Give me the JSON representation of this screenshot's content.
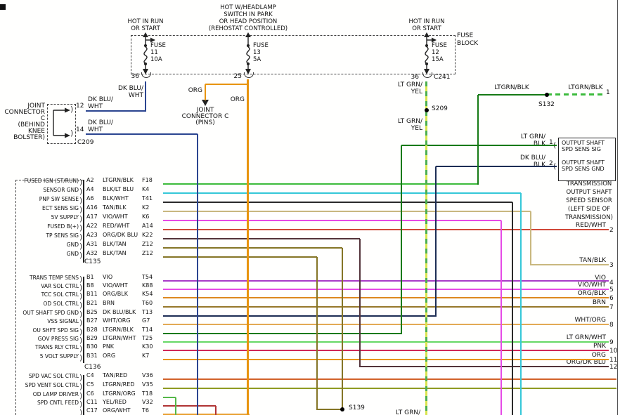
{
  "fuse_block": {
    "label": [
      "FUSE",
      "BLOCK"
    ],
    "fuses": [
      {
        "feed": [
          "HOT IN RUN",
          "OR START"
        ],
        "name": "FUSE",
        "number": "11",
        "rating": "10A",
        "pin": "36"
      },
      {
        "feed": [
          "HOT W/HEADLAMP",
          "SWITCH IN PARK",
          "OR HEAD POSITION",
          "(REHOSTAT CONTROLLED)"
        ],
        "name": "FUSE",
        "number": "13",
        "rating": "5A",
        "pin": "25"
      },
      {
        "feed": [
          "HOT IN RUN",
          "OR START"
        ],
        "name": "FUSE",
        "number": "12",
        "rating": "15A",
        "pin": "36",
        "connector": "C241"
      }
    ]
  },
  "wire_colors": {
    "dk_blu_wht": "#2b4590",
    "org": "#e8940f",
    "lt_grn_yel_base": "#d9e44f",
    "lt_grn_yel_dash": "#4caf50",
    "lt_grn_blk_dark": "#157a15",
    "lt_grn_blk_bright": "#3dbb3d",
    "dk_blu_blk": "#1d2d55"
  },
  "joint_connector_c": {
    "label": [
      "JOINT",
      "CONNECTOR",
      "C",
      "(BEHIND",
      "KNEE",
      "BOLSTER)"
    ],
    "pin_top": "12",
    "pin_bottom": "14",
    "id": "C209",
    "wire_label": [
      "DK BLU/",
      "WHT"
    ]
  },
  "joint_connector_c_pins": {
    "label": [
      "JOINT",
      "CONNECTOR C",
      "(PINS)"
    ],
    "wire_label": "ORG"
  },
  "splices": {
    "s132": "S132",
    "s209": "S209",
    "s139": "S139"
  },
  "lt_grn_yel_label": [
    "LT GRN/",
    "YEL"
  ],
  "top_right": {
    "wire_left": "LTGRN/BLK",
    "wire_right": "LTGRN/BLK",
    "pin": "1"
  },
  "sensor_box": {
    "rows": [
      {
        "wire_label": [
          "LT GRN/",
          "BLK"
        ],
        "pin": "1",
        "name": [
          "OUTPUT SHAFT",
          "SPD SENS SIG"
        ]
      },
      {
        "wire_label": [
          "DK BLU/",
          "BLK"
        ],
        "pin": "2",
        "name": [
          "OUTPUT SHAFT",
          "SPD SENS GND"
        ]
      }
    ],
    "caption": [
      "TRANSMISSION",
      "OUTPUT SHAFT",
      "SPEED SENSOR",
      "(LEFT SIDE OF",
      "TRANSMISSION)"
    ]
  },
  "connectors": [
    {
      "id": "C135",
      "rows": [
        {
          "label": "FUSED IGN (ST/RUN)",
          "pin": "A2",
          "wire": "LTGRN/BLK",
          "circuit": "F18",
          "color": "#3dbb3d"
        },
        {
          "label": "SENSOR GND",
          "pin": "A4",
          "wire": "BLK/LT BLU",
          "circuit": "K4",
          "color": "#35c8d8"
        },
        {
          "label": "PNP SW SENSE",
          "pin": "A6",
          "wire": "BLK/WHT",
          "circuit": "T41",
          "color": "#2a2a2a"
        },
        {
          "label": "ECT SENS SIG",
          "pin": "A16",
          "wire": "TAN/BLK",
          "circuit": "K2",
          "color": "#c9b87f"
        },
        {
          "label": "5V SUPPLY",
          "pin": "A17",
          "wire": "VIO/WHT",
          "circuit": "K6",
          "color": "#e64ae6"
        },
        {
          "label": "FUSED B(+)",
          "pin": "A22",
          "wire": "RED/WHT",
          "circuit": "A14",
          "color": "#d04838"
        },
        {
          "label": "TP SENS SIG",
          "pin": "A23",
          "wire": "ORG/DK BLU",
          "circuit": "K22",
          "color": "#53343a"
        },
        {
          "label": "GND",
          "pin": "A31",
          "wire": "BLK/TAN",
          "circuit": "Z12",
          "color": "#857526"
        },
        {
          "label": "GND",
          "pin": "A32",
          "wire": "BLK/TAN",
          "circuit": "Z12",
          "color": "#857526"
        }
      ]
    },
    {
      "id": "C136",
      "rows": [
        {
          "label": "TRANS TEMP SENS",
          "pin": "B1",
          "wire": "VIO",
          "circuit": "T54",
          "color": "#a83cc8"
        },
        {
          "label": "VAR SOL CTRL",
          "pin": "B8",
          "wire": "VIO/WHT",
          "circuit": "K88",
          "color": "#e64ae6"
        },
        {
          "label": "TCC SOL CTRL",
          "pin": "B11",
          "wire": "ORG/BLK",
          "circuit": "K54",
          "color": "#dd8820"
        },
        {
          "label": "OD SOL CTRL",
          "pin": "B21",
          "wire": "BRN",
          "circuit": "T60",
          "color": "#96782a"
        },
        {
          "label": "OUT SHAFT SPD GND",
          "pin": "B25",
          "wire": "DK BLU/BLK",
          "circuit": "T13",
          "color": "#1d2d55"
        },
        {
          "label": "VSS SIGNAL",
          "pin": "B27",
          "wire": "WHT/ORG",
          "circuit": "G7",
          "color": "#e2aa55"
        },
        {
          "label": "OU SHFT SPD SIG",
          "pin": "B28",
          "wire": "LTGRN/BLK",
          "circuit": "T14",
          "color": "#157a15"
        },
        {
          "label": "GOV PRESS SIG",
          "pin": "B29",
          "wire": "LTGRN/WHT",
          "circuit": "T25",
          "color": "#66d866"
        },
        {
          "label": "TRANS RLY CTRL",
          "pin": "B30",
          "wire": "PNK",
          "circuit": "K30",
          "color": "#d02858"
        },
        {
          "label": "5 VOLT SUPPLY",
          "pin": "B31",
          "wire": "ORG",
          "circuit": "K7",
          "color": "#e8940f"
        }
      ]
    },
    {
      "id": "",
      "rows": [
        {
          "label": "SPD VAC SOL CTRL",
          "pin": "C4",
          "wire": "TAN/RED",
          "circuit": "V36",
          "color": "#d2622a"
        },
        {
          "label": "SPD VENT SOL CTRL",
          "pin": "C5",
          "wire": "LTGRN/RED",
          "circuit": "V35",
          "color": "#8f9a22"
        },
        {
          "label": "OD LAMP DRIVER",
          "pin": "C6",
          "wire": "LTGRN/ORG",
          "circuit": "T18",
          "color": "#55b848"
        },
        {
          "label": "SPD CNTL FEED",
          "pin": "C11",
          "wire": "YEL/RED",
          "circuit": "V32",
          "color": "#b03333"
        },
        {
          "label": "",
          "pin": "C17",
          "wire": "ORG/WHT",
          "circuit": "T6",
          "color": "#e8a030"
        }
      ]
    }
  ],
  "right_pins": [
    {
      "wire": "RED/WHT",
      "pin": "2"
    },
    {
      "wire": "TAN/BLK",
      "pin": "3"
    },
    {
      "wire": "VIO",
      "pin": "4"
    },
    {
      "wire": "VIO/WHT",
      "pin": "5"
    },
    {
      "wire": "ORG/BLK",
      "pin": "6"
    },
    {
      "wire": "BRN",
      "pin": "7"
    },
    {
      "wire": "WHT/ORG",
      "pin": "8"
    },
    {
      "wire": "LT GRN/WHT",
      "pin": "9"
    },
    {
      "wire": "PNK",
      "pin": "10"
    },
    {
      "wire": "ORG",
      "pin": "11"
    },
    {
      "wire": "ORG/DK BLU",
      "pin": "12"
    }
  ],
  "bottom_cut_label": "LT GRN/"
}
